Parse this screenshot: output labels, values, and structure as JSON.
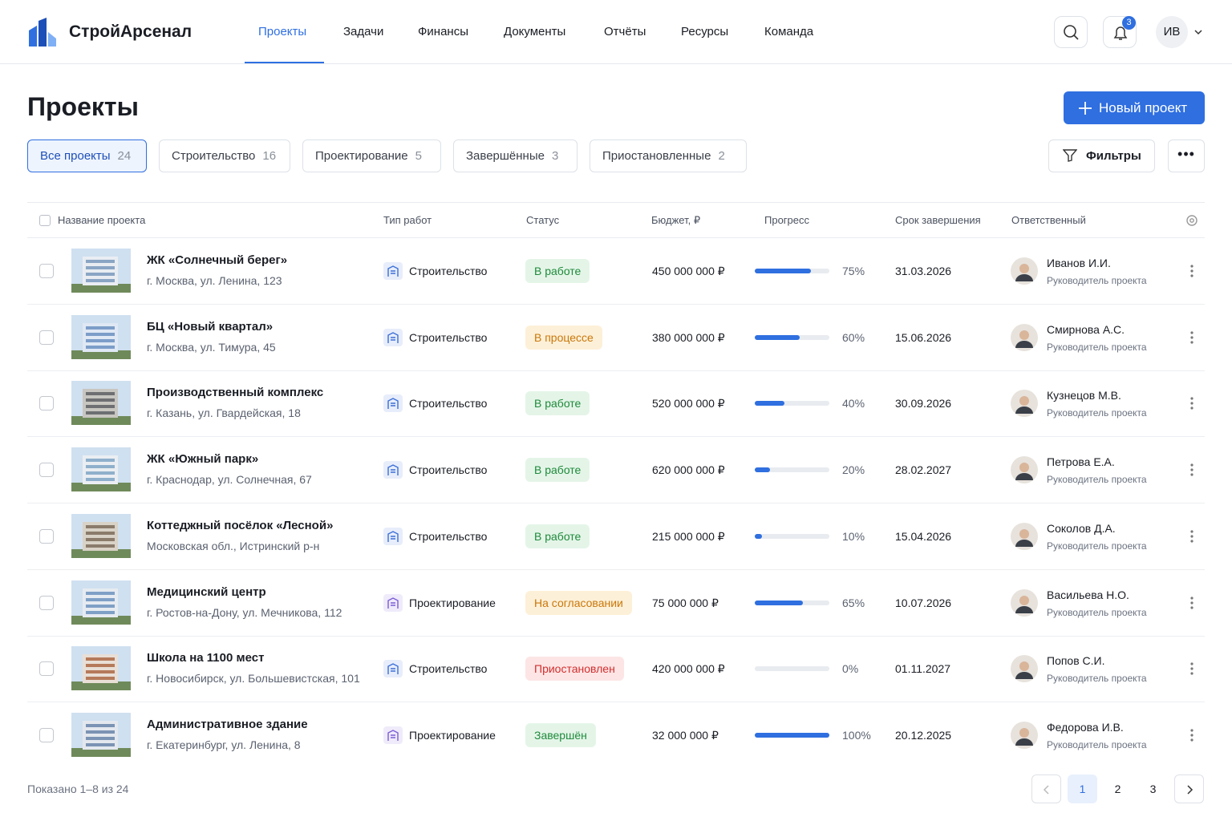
{
  "nav": {
    "logo": "СтройАрсенал",
    "items": [
      "Проекты",
      "Задачи",
      "Финансы",
      "Документы",
      "Отчёты",
      "Ресурсы",
      "Команда"
    ],
    "active": 0,
    "notifications": "3",
    "user": "ИВ"
  },
  "page": {
    "title": "Проекты",
    "new_button": "Новый проект",
    "filters": "Фильтры",
    "active_tab": 0,
    "tabs": [
      {
        "label": "Все проекты",
        "count": "24"
      },
      {
        "label": "Строительство",
        "count": "16"
      },
      {
        "label": "Проектирование",
        "count": "5"
      },
      {
        "label": "Завершённые",
        "count": "3"
      },
      {
        "label": "Приостановленные",
        "count": "2"
      }
    ]
  },
  "table": {
    "columns": [
      "Название проекта",
      "Тип работ",
      "Статус",
      "Бюджет, ₽",
      "Прогресс",
      "Срок завершения",
      "Ответственный"
    ],
    "progress_scale": [
      0,
      100
    ],
    "rows": [
      {
        "name": "ЖК «Солнечный берег»",
        "address": "г. Москва, ул. Ленина, 123",
        "type": "Строительство",
        "type_color": "#3b6fd8",
        "status": "В работе",
        "status_color": "#1f8a3b",
        "status_bg": "#e4f5e8",
        "budget": "450 000 000 ₽",
        "progress": 75,
        "progress_label": "75%",
        "due": "31.03.2026",
        "manager": "Иванов И.И.",
        "role": "Руководитель проекта"
      },
      {
        "name": "БЦ «Новый квартал»",
        "address": "г. Москва, ул. Тимура, 45",
        "type": "Строительство",
        "type_color": "#3b6fd8",
        "status": "В процессе",
        "status_color": "#c9780a",
        "status_bg": "#fdf0d8",
        "budget": "380 000 000 ₽",
        "progress": 60,
        "progress_label": "60%",
        "due": "15.06.2026",
        "manager": "Смирнова А.С.",
        "role": "Руководитель проекта"
      },
      {
        "name": "Производственный комплекс",
        "address": "г. Казань, ул. Гвардейская, 18",
        "type": "Строительство",
        "type_color": "#3b6fd8",
        "status": "В работе",
        "status_color": "#1f8a3b",
        "status_bg": "#e4f5e8",
        "budget": "520 000 000 ₽",
        "progress": 40,
        "progress_label": "40%",
        "due": "30.09.2026",
        "manager": "Кузнецов М.В.",
        "role": "Руководитель проекта"
      },
      {
        "name": "ЖК «Южный парк»",
        "address": "г. Краснодар, ул. Солнечная, 67",
        "type": "Строительство",
        "type_color": "#3b6fd8",
        "status": "В работе",
        "status_color": "#1f8a3b",
        "status_bg": "#e4f5e8",
        "budget": "620 000 000 ₽",
        "progress": 20,
        "progress_label": "20%",
        "due": "28.02.2027",
        "manager": "Петрова Е.А.",
        "role": "Руководитель проекта"
      },
      {
        "name": "Коттеджный посёлок «Лесной»",
        "address": "Московская обл., Истринский р-н",
        "type": "Строительство",
        "type_color": "#3b6fd8",
        "status": "В работе",
        "status_color": "#1f8a3b",
        "status_bg": "#e4f5e8",
        "budget": "215 000 000 ₽",
        "progress": 10,
        "progress_label": "10%",
        "due": "15.04.2026",
        "manager": "Соколов Д.А.",
        "role": "Руководитель проекта"
      },
      {
        "name": "Медицинский центр",
        "address": "г. Ростов-на-Дону, ул. Мечникова, 112",
        "type": "Проектирование",
        "type_color": "#7b5cd6",
        "status": "На согласовании",
        "status_color": "#c9780a",
        "status_bg": "#fdf0d8",
        "budget": "75 000 000 ₽",
        "progress": 65,
        "progress_label": "65%",
        "due": "10.07.2026",
        "manager": "Васильева Н.О.",
        "role": "Руководитель проекта"
      },
      {
        "name": "Школа на 1100 мест",
        "address": "г. Новосибирск, ул. Большевистская, 101",
        "type": "Строительство",
        "type_color": "#3b6fd8",
        "status": "Приостановлен",
        "status_color": "#d12f2f",
        "status_bg": "#fde5e5",
        "budget": "420 000 000 ₽",
        "progress": 0,
        "progress_label": "0%",
        "due": "01.11.2027",
        "manager": "Попов С.И.",
        "role": "Руководитель проекта"
      },
      {
        "name": "Административное здание",
        "address": "г. Екатеринбург, ул. Ленина, 8",
        "type": "Проектирование",
        "type_color": "#7b5cd6",
        "status": "Завершён",
        "status_color": "#1f8a3b",
        "status_bg": "#e4f5e8",
        "budget": "32 000 000 ₽",
        "progress": 100,
        "progress_label": "100%",
        "due": "20.12.2025",
        "manager": "Федорова И.В.",
        "role": "Руководитель проекта"
      }
    ]
  },
  "footer": {
    "shown": "Показано 1–8 из 24",
    "pages": [
      "1",
      "2",
      "3"
    ],
    "current": 0
  }
}
